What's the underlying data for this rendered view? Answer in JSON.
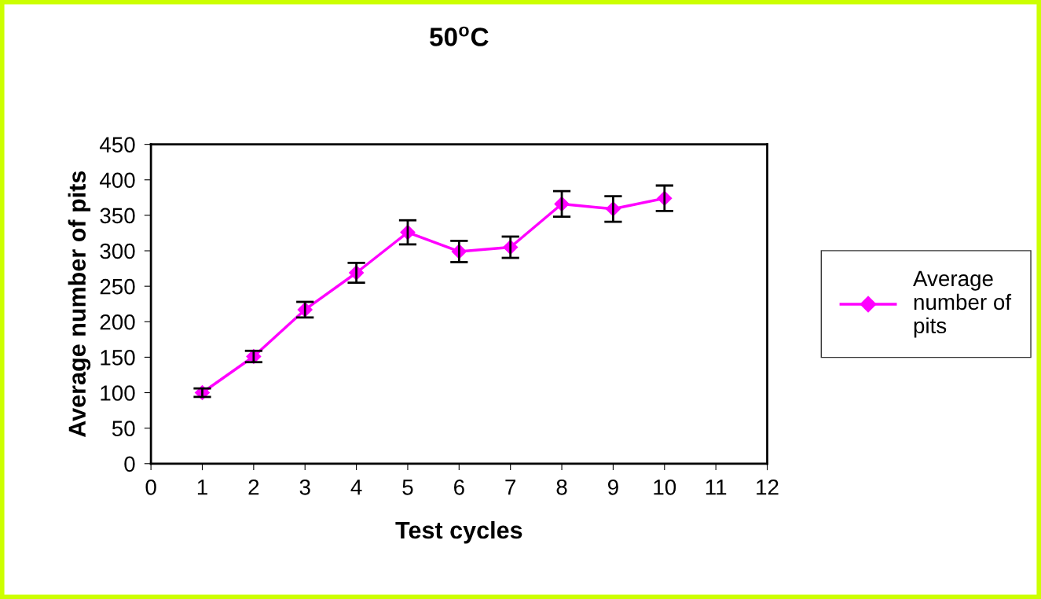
{
  "chart_data": {
    "type": "line",
    "title": "50$^{o}$C",
    "xlabel": "Test cycles",
    "ylabel": "Average number of pits",
    "x": [
      1,
      2,
      3,
      4,
      5,
      6,
      7,
      8,
      9,
      10
    ],
    "series": [
      {
        "name": "Average number of pits",
        "color": "#ff00ff",
        "values": [
          100,
          151,
          217,
          269,
          326,
          299,
          305,
          366,
          359,
          374
        ],
        "errors": [
          6,
          8,
          11,
          14,
          17,
          15,
          15,
          18,
          18,
          18
        ]
      }
    ],
    "xlim": [
      0,
      12
    ],
    "xticks": [
      0,
      1,
      2,
      3,
      4,
      5,
      6,
      7,
      8,
      9,
      10,
      11,
      12
    ],
    "ylim": [
      0,
      450
    ],
    "yticks": [
      0,
      50,
      100,
      150,
      200,
      250,
      300,
      350,
      400,
      450
    ],
    "grid": false,
    "legend": "right",
    "marker": "diamond",
    "line_style": "solid"
  }
}
